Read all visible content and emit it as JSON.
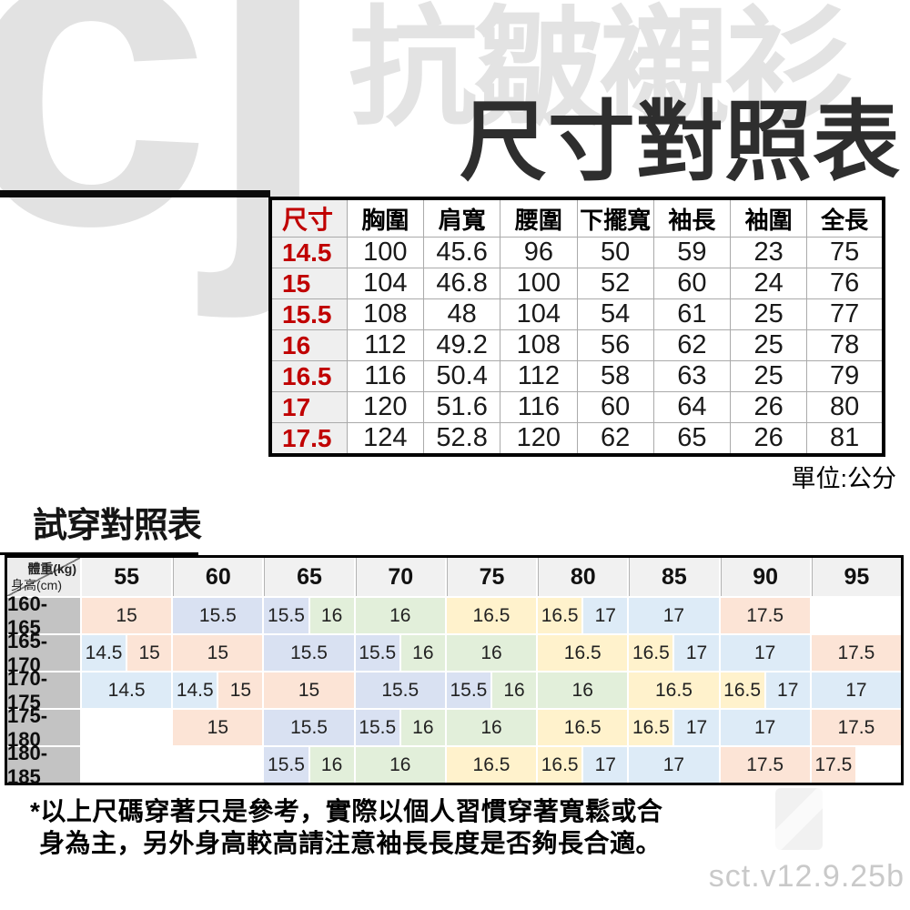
{
  "branding": {
    "logo": "cj",
    "watermark": "抗皺襯衫",
    "version": "sct.v12.9.25b"
  },
  "size_table": {
    "title": "尺寸對照表",
    "unit_note": "單位:公分",
    "columns": [
      "尺寸",
      "胸圍",
      "肩寬",
      "腰圍",
      "下擺寬",
      "袖長",
      "袖圍",
      "全長"
    ],
    "rows": [
      [
        "14.5",
        "100",
        "45.6",
        "96",
        "50",
        "59",
        "23",
        "75"
      ],
      [
        "15",
        "104",
        "46.8",
        "100",
        "52",
        "60",
        "24",
        "76"
      ],
      [
        "15.5",
        "108",
        "48",
        "104",
        "54",
        "61",
        "25",
        "77"
      ],
      [
        "16",
        "112",
        "49.2",
        "108",
        "56",
        "62",
        "25",
        "78"
      ],
      [
        "16.5",
        "116",
        "50.4",
        "112",
        "58",
        "63",
        "25",
        "79"
      ],
      [
        "17",
        "120",
        "51.6",
        "116",
        "60",
        "64",
        "26",
        "80"
      ],
      [
        "17.5",
        "124",
        "52.8",
        "120",
        "62",
        "65",
        "26",
        "81"
      ]
    ],
    "accent_color": "#c00000"
  },
  "fit_table": {
    "title": "試穿對照表",
    "corner": {
      "top_right": "體重(kg)",
      "bottom_left": "身高(cm)"
    },
    "weight_columns": [
      "55",
      "60",
      "65",
      "70",
      "75",
      "80",
      "85",
      "90",
      "95"
    ],
    "palette": {
      "peach": "#fce4d6",
      "blue": "#ddebf7",
      "lavender": "#d9e1f2",
      "green": "#e2efda",
      "yellow": "#fff2cc",
      "none": "#ffffff"
    },
    "rows": [
      {
        "height": "160-165",
        "cells": [
          {
            "v": "15",
            "span": 2,
            "c": "peach"
          },
          {
            "v": "15.5",
            "span": 2,
            "c": "lavender"
          },
          {
            "v": "15.5",
            "span": 1,
            "c": "lavender"
          },
          {
            "v": "16",
            "span": 1,
            "c": "green"
          },
          {
            "v": "16",
            "span": 2,
            "c": "green"
          },
          {
            "v": "16.5",
            "span": 2,
            "c": "yellow"
          },
          {
            "v": "16.5",
            "span": 1,
            "c": "yellow"
          },
          {
            "v": "17",
            "span": 1,
            "c": "blue"
          },
          {
            "v": "17",
            "span": 2,
            "c": "blue"
          },
          {
            "v": "17.5",
            "span": 2,
            "c": "peach"
          },
          {
            "v": "",
            "span": 2,
            "c": "none"
          }
        ]
      },
      {
        "height": "165-170",
        "cells": [
          {
            "v": "14.5",
            "span": 1,
            "c": "blue"
          },
          {
            "v": "15",
            "span": 1,
            "c": "peach"
          },
          {
            "v": "15",
            "span": 2,
            "c": "peach"
          },
          {
            "v": "15.5",
            "span": 2,
            "c": "lavender"
          },
          {
            "v": "15.5",
            "span": 1,
            "c": "lavender"
          },
          {
            "v": "16",
            "span": 1,
            "c": "green"
          },
          {
            "v": "16",
            "span": 2,
            "c": "green"
          },
          {
            "v": "16.5",
            "span": 2,
            "c": "yellow"
          },
          {
            "v": "16.5",
            "span": 1,
            "c": "yellow"
          },
          {
            "v": "17",
            "span": 1,
            "c": "blue"
          },
          {
            "v": "17",
            "span": 2,
            "c": "blue"
          },
          {
            "v": "17.5",
            "span": 2,
            "c": "peach"
          }
        ]
      },
      {
        "height": "170-175",
        "cells": [
          {
            "v": "14.5",
            "span": 2,
            "c": "blue"
          },
          {
            "v": "14.5",
            "span": 1,
            "c": "blue"
          },
          {
            "v": "15",
            "span": 1,
            "c": "peach"
          },
          {
            "v": "15",
            "span": 2,
            "c": "peach"
          },
          {
            "v": "15.5",
            "span": 2,
            "c": "lavender"
          },
          {
            "v": "15.5",
            "span": 1,
            "c": "lavender"
          },
          {
            "v": "16",
            "span": 1,
            "c": "green"
          },
          {
            "v": "16",
            "span": 2,
            "c": "green"
          },
          {
            "v": "16.5",
            "span": 2,
            "c": "yellow"
          },
          {
            "v": "16.5",
            "span": 1,
            "c": "yellow"
          },
          {
            "v": "17",
            "span": 1,
            "c": "blue"
          },
          {
            "v": "17",
            "span": 2,
            "c": "blue"
          }
        ]
      },
      {
        "height": "175-180",
        "cells": [
          {
            "v": "",
            "span": 2,
            "c": "none"
          },
          {
            "v": "15",
            "span": 2,
            "c": "peach"
          },
          {
            "v": "15.5",
            "span": 2,
            "c": "lavender"
          },
          {
            "v": "15.5",
            "span": 1,
            "c": "lavender"
          },
          {
            "v": "16",
            "span": 1,
            "c": "green"
          },
          {
            "v": "16",
            "span": 2,
            "c": "green"
          },
          {
            "v": "16.5",
            "span": 2,
            "c": "yellow"
          },
          {
            "v": "16.5",
            "span": 1,
            "c": "yellow"
          },
          {
            "v": "17",
            "span": 1,
            "c": "blue"
          },
          {
            "v": "17",
            "span": 2,
            "c": "blue"
          },
          {
            "v": "17.5",
            "span": 2,
            "c": "peach"
          }
        ]
      },
      {
        "height": "180-185",
        "cells": [
          {
            "v": "",
            "span": 2,
            "c": "none"
          },
          {
            "v": "",
            "span": 2,
            "c": "none"
          },
          {
            "v": "15.5",
            "span": 1,
            "c": "lavender"
          },
          {
            "v": "16",
            "span": 1,
            "c": "green"
          },
          {
            "v": "16",
            "span": 2,
            "c": "green"
          },
          {
            "v": "16.5",
            "span": 2,
            "c": "yellow"
          },
          {
            "v": "16.5",
            "span": 1,
            "c": "yellow"
          },
          {
            "v": "17",
            "span": 1,
            "c": "blue"
          },
          {
            "v": "17",
            "span": 2,
            "c": "blue"
          },
          {
            "v": "17.5",
            "span": 2,
            "c": "peach"
          },
          {
            "v": "17.5",
            "span": 1,
            "c": "peach"
          },
          {
            "v": "",
            "span": 1,
            "c": "none"
          }
        ]
      }
    ]
  },
  "notes": {
    "line1": "*以上尺碼穿著只是參考，實際以個人習慣穿著寬鬆或合",
    "line2": "身為主，另外身高較高請注意袖長長度是否夠長合適。"
  }
}
